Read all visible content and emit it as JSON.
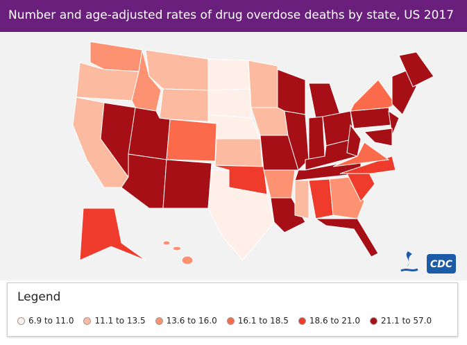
{
  "header": {
    "title": "Number and age-adjusted rates of drug overdose deaths by state, US 2017"
  },
  "logo": "CDC",
  "legend": {
    "title": "Legend",
    "items": [
      {
        "label": "6.9 to 11.0",
        "color": "#fef0e9"
      },
      {
        "label": "11.1 to 13.5",
        "color": "#fcbba1"
      },
      {
        "label": "13.6 to 16.0",
        "color": "#fc9272"
      },
      {
        "label": "16.1 to 18.5",
        "color": "#fb6a4a"
      },
      {
        "label": "18.6 to 21.0",
        "color": "#ef3b2c"
      },
      {
        "label": "21.1 to 57.0",
        "color": "#a50f15"
      }
    ]
  }
}
